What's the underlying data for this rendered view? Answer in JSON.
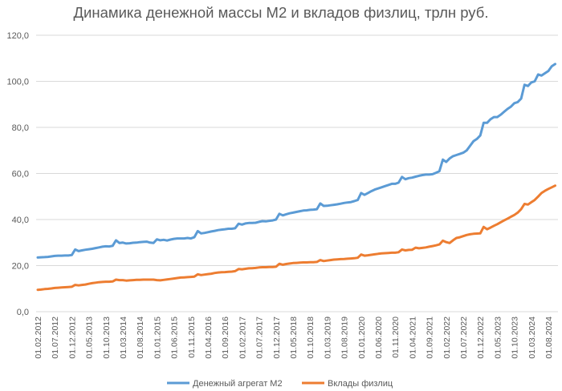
{
  "chart_data": {
    "type": "line",
    "title": "Динамика денежной массы М2 и вкладов физлиц, трлн руб.",
    "xlabel": "",
    "ylabel": "",
    "ylim": [
      0,
      120
    ],
    "yticks": [
      "0,0",
      "20,0",
      "40,0",
      "60,0",
      "80,0",
      "100,0",
      "120,0"
    ],
    "grid": true,
    "legend": "bottom",
    "x": [
      "01.02.2012",
      "01.03.2012",
      "01.04.2012",
      "01.05.2012",
      "01.06.2012",
      "01.07.2012",
      "01.08.2012",
      "01.09.2012",
      "01.10.2012",
      "01.11.2012",
      "01.12.2012",
      "01.01.2013",
      "01.02.2013",
      "01.03.2013",
      "01.04.2013",
      "01.05.2013",
      "01.06.2013",
      "01.07.2013",
      "01.08.2013",
      "01.09.2013",
      "01.10.2013",
      "01.11.2013",
      "01.12.2013",
      "01.01.2014",
      "01.02.2014",
      "01.03.2014",
      "01.04.2014",
      "01.05.2014",
      "01.06.2014",
      "01.07.2014",
      "01.08.2014",
      "01.09.2014",
      "01.10.2014",
      "01.11.2014",
      "01.12.2014",
      "01.01.2015",
      "01.02.2015",
      "01.03.2015",
      "01.04.2015",
      "01.05.2015",
      "01.06.2015",
      "01.07.2015",
      "01.08.2015",
      "01.09.2015",
      "01.10.2015",
      "01.11.2015",
      "01.12.2015",
      "01.01.2016",
      "01.02.2016",
      "01.03.2016",
      "01.04.2016",
      "01.05.2016",
      "01.06.2016",
      "01.07.2016",
      "01.08.2016",
      "01.09.2016",
      "01.10.2016",
      "01.11.2016",
      "01.12.2016",
      "01.01.2017",
      "01.02.2017",
      "01.03.2017",
      "01.04.2017",
      "01.05.2017",
      "01.06.2017",
      "01.07.2017",
      "01.08.2017",
      "01.09.2017",
      "01.10.2017",
      "01.11.2017",
      "01.12.2017",
      "01.01.2018",
      "01.02.2018",
      "01.03.2018",
      "01.04.2018",
      "01.05.2018",
      "01.06.2018",
      "01.07.2018",
      "01.08.2018",
      "01.09.2018",
      "01.10.2018",
      "01.11.2018",
      "01.12.2018",
      "01.01.2019",
      "01.02.2019",
      "01.03.2019",
      "01.04.2019",
      "01.05.2019",
      "01.06.2019",
      "01.07.2019",
      "01.08.2019",
      "01.09.2019",
      "01.10.2019",
      "01.11.2019",
      "01.12.2019",
      "01.01.2020",
      "01.02.2020",
      "01.03.2020",
      "01.04.2020",
      "01.05.2020",
      "01.06.2020",
      "01.07.2020",
      "01.08.2020",
      "01.09.2020",
      "01.10.2020",
      "01.11.2020",
      "01.12.2020",
      "01.01.2021",
      "01.02.2021",
      "01.03.2021",
      "01.04.2021",
      "01.05.2021",
      "01.06.2021",
      "01.07.2021",
      "01.08.2021",
      "01.09.2021",
      "01.10.2021",
      "01.11.2021",
      "01.12.2021",
      "01.01.2022",
      "01.02.2022",
      "01.03.2022",
      "01.04.2022",
      "01.05.2022",
      "01.06.2022",
      "01.07.2022",
      "01.08.2022",
      "01.09.2022",
      "01.10.2022",
      "01.11.2022",
      "01.12.2022",
      "01.01.2023",
      "01.02.2023",
      "01.03.2023",
      "01.04.2023",
      "01.05.2023",
      "01.06.2023",
      "01.07.2023",
      "01.08.2023",
      "01.09.2023",
      "01.10.2023",
      "01.11.2023",
      "01.12.2023",
      "01.01.2024",
      "01.02.2024",
      "01.03.2024",
      "01.04.2024",
      "01.05.2024",
      "01.06.2024",
      "01.07.2024",
      "01.08.2024",
      "01.09.2024",
      "01.10.2024"
    ],
    "xticks": [
      "01.02.2012",
      "01.07.2012",
      "01.12.2012",
      "01.05.2013",
      "01.10.2013",
      "01.03.2014",
      "01.08.2014",
      "01.01.2015",
      "01.06.2015",
      "01.11.2015",
      "01.04.2016",
      "01.09.2016",
      "01.02.2017",
      "01.07.2017",
      "01.12.2017",
      "01.05.2018",
      "01.10.2018",
      "01.03.2019",
      "01.08.2019",
      "01.01.2020",
      "01.06.2020",
      "01.11.2020",
      "01.04.2021",
      "01.09.2021",
      "01.02.2022",
      "01.07.2022",
      "01.12.2022",
      "01.05.2023",
      "01.10.2023",
      "01.03.2024",
      "01.08.2024"
    ],
    "series": [
      {
        "name": "Денежный агрегат М2",
        "color": "#5b9bd5",
        "values": [
          23.5,
          23.6,
          23.7,
          23.8,
          24.0,
          24.2,
          24.3,
          24.3,
          24.4,
          24.4,
          24.6,
          27.0,
          26.3,
          26.6,
          26.9,
          27.1,
          27.3,
          27.6,
          27.9,
          28.2,
          28.4,
          28.3,
          28.6,
          31.0,
          29.8,
          30.0,
          29.6,
          29.7,
          29.9,
          30.0,
          30.2,
          30.3,
          30.4,
          30.0,
          29.8,
          31.4,
          31.0,
          31.2,
          30.9,
          31.3,
          31.6,
          31.8,
          31.8,
          31.8,
          32.0,
          31.8,
          32.3,
          35.0,
          34.0,
          34.2,
          34.5,
          34.8,
          35.1,
          35.4,
          35.6,
          35.8,
          36.0,
          36.0,
          36.2,
          38.2,
          37.8,
          38.3,
          38.5,
          38.5,
          38.6,
          39.0,
          39.3,
          39.2,
          39.4,
          39.6,
          40.0,
          42.5,
          41.8,
          42.3,
          42.7,
          43.0,
          43.3,
          43.6,
          43.9,
          44.0,
          44.2,
          44.3,
          44.5,
          47.0,
          45.9,
          46.0,
          46.2,
          46.4,
          46.6,
          46.9,
          47.2,
          47.4,
          47.6,
          48.0,
          48.5,
          51.5,
          50.7,
          51.5,
          52.3,
          53.0,
          53.5,
          54.0,
          54.5,
          55.0,
          55.5,
          55.5,
          56.0,
          58.5,
          57.5,
          58.0,
          58.2,
          58.6,
          59.0,
          59.3,
          59.5,
          59.5,
          59.7,
          60.3,
          61.0,
          66.0,
          65.0,
          66.5,
          67.5,
          68.0,
          68.5,
          69.0,
          70.0,
          72.0,
          74.0,
          75.0,
          76.5,
          82.0,
          82.0,
          83.5,
          84.5,
          84.5,
          85.5,
          86.8,
          88.0,
          89.0,
          90.5,
          91.0,
          92.5,
          98.5,
          98.0,
          99.5,
          100.0,
          103.0,
          102.5,
          103.5,
          104.5,
          106.5,
          107.5
        ]
      },
      {
        "name": "Вклады физлиц",
        "color": "#ed7d31",
        "values": [
          9.5,
          9.6,
          9.8,
          9.9,
          10.1,
          10.3,
          10.4,
          10.5,
          10.6,
          10.7,
          10.8,
          11.6,
          11.4,
          11.6,
          11.8,
          12.1,
          12.4,
          12.6,
          12.8,
          12.9,
          13.0,
          13.0,
          13.1,
          13.9,
          13.7,
          13.7,
          13.5,
          13.6,
          13.7,
          13.8,
          13.8,
          13.9,
          13.9,
          13.9,
          13.9,
          13.7,
          13.6,
          13.8,
          14.0,
          14.2,
          14.4,
          14.6,
          14.8,
          14.9,
          15.0,
          15.1,
          15.2,
          16.2,
          15.9,
          16.1,
          16.3,
          16.5,
          16.8,
          17.0,
          17.1,
          17.2,
          17.3,
          17.4,
          17.6,
          18.5,
          18.4,
          18.6,
          18.8,
          18.9,
          19.0,
          19.2,
          19.3,
          19.3,
          19.4,
          19.4,
          19.5,
          20.8,
          20.4,
          20.7,
          20.9,
          21.1,
          21.2,
          21.3,
          21.4,
          21.4,
          21.5,
          21.5,
          21.6,
          22.4,
          22.0,
          22.2,
          22.4,
          22.6,
          22.7,
          22.8,
          22.9,
          23.0,
          23.1,
          23.2,
          23.4,
          24.8,
          24.3,
          24.5,
          24.7,
          24.9,
          25.1,
          25.3,
          25.4,
          25.5,
          25.6,
          25.6,
          25.8,
          27.0,
          26.6,
          26.8,
          26.9,
          27.8,
          27.5,
          27.7,
          27.9,
          28.2,
          28.5,
          28.8,
          29.2,
          30.8,
          30.2,
          29.8,
          31.0,
          32.0,
          32.3,
          32.8,
          33.3,
          33.6,
          33.8,
          33.9,
          34.0,
          36.8,
          35.8,
          36.5,
          37.3,
          38.0,
          38.8,
          39.6,
          40.4,
          41.2,
          42.0,
          43.0,
          44.5,
          46.8,
          46.5,
          47.5,
          48.5,
          50.0,
          51.5,
          52.5,
          53.3,
          54.0,
          54.7
        ]
      }
    ]
  }
}
